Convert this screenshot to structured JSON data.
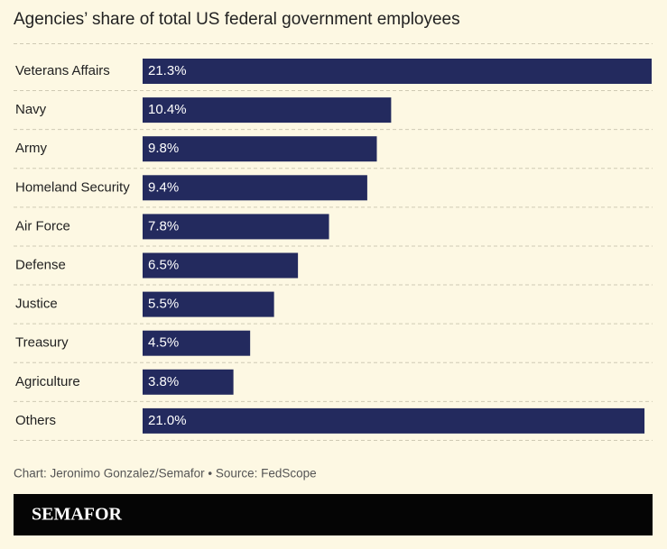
{
  "chart_data": {
    "type": "bar",
    "orientation": "horizontal",
    "title": "Agencies’ share of total US federal government employees",
    "categories": [
      "Veterans Affairs",
      "Navy",
      "Army",
      "Homeland Security",
      "Air Force",
      "Defense",
      "Justice",
      "Treasury",
      "Agriculture",
      "Others"
    ],
    "values": [
      21.3,
      10.4,
      9.8,
      9.4,
      7.8,
      6.5,
      5.5,
      4.5,
      3.8,
      21.0
    ],
    "value_labels": [
      "21.3%",
      "10.4%",
      "9.8%",
      "9.4%",
      "7.8%",
      "6.5%",
      "5.5%",
      "4.5%",
      "3.8%",
      "21.0%"
    ],
    "color": "#232a5e",
    "source": "Chart: Jeronimo Gonzalez/Semafor • Source: FedScope",
    "brand": "SEMAFOR"
  }
}
